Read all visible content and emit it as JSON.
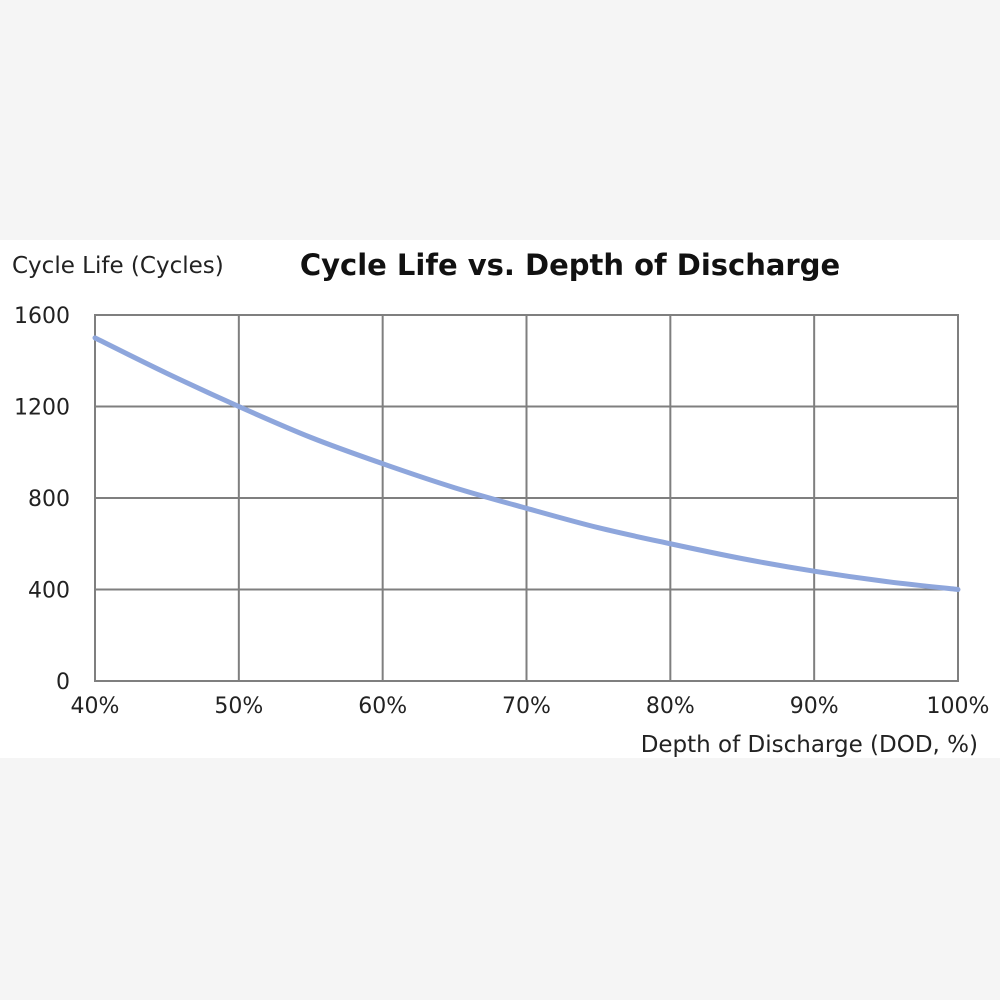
{
  "chart_data": {
    "type": "line",
    "title": "Cycle Life vs. Depth of Discharge",
    "ylabel": "Cycle Life (Cycles)",
    "xlabel": "Depth of Discharge (DOD, %)",
    "xlim": [
      40,
      100
    ],
    "ylim": [
      0,
      1600
    ],
    "x_ticks": [
      "40%",
      "50%",
      "60%",
      "70%",
      "80%",
      "90%",
      "100%"
    ],
    "x_tick_values": [
      40,
      50,
      60,
      70,
      80,
      90,
      100
    ],
    "y_ticks": [
      "0",
      "400",
      "800",
      "1200",
      "1600"
    ],
    "y_tick_values": [
      0,
      400,
      800,
      1200,
      1600
    ],
    "grid": true,
    "series": [
      {
        "color": "#8ea6dc",
        "x": [
          40,
          45,
          50,
          55,
          60,
          65,
          70,
          75,
          80,
          85,
          90,
          95,
          100
        ],
        "y": [
          1500,
          1345,
          1200,
          1065,
          950,
          845,
          755,
          670,
          600,
          535,
          480,
          435,
          400
        ]
      }
    ]
  }
}
